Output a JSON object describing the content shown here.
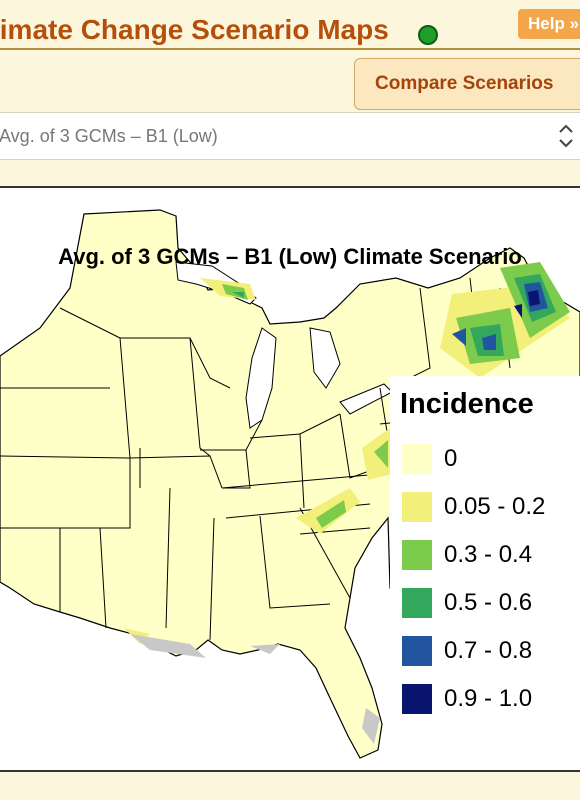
{
  "header": {
    "title": "limate Change Scenario Maps",
    "help_label": "Help »"
  },
  "toolbar": {
    "compare_label": "Compare Scenarios"
  },
  "scenario_select": {
    "value": "Avg. of 3 GCMs – B1 (Low)"
  },
  "map": {
    "title": "Avg. of 3 GCMs – B1 (Low) Climate Scenario",
    "legend": {
      "title": "Incidence",
      "items": [
        {
          "label": "0",
          "color": "#ffffc8"
        },
        {
          "label": "0.05 - 0.2",
          "color": "#f2f07a"
        },
        {
          "label": "0.3 - 0.4",
          "color": "#7ccb4d"
        },
        {
          "label": "0.5 - 0.6",
          "color": "#33a85c"
        },
        {
          "label": "0.7 - 0.8",
          "color": "#2255a0"
        },
        {
          "label": "0.9 - 1.0",
          "color": "#0a1570"
        }
      ]
    },
    "colors": {
      "land": "#ffffc8",
      "no_data": "#c8c8c8",
      "state_border": "#000000"
    }
  }
}
